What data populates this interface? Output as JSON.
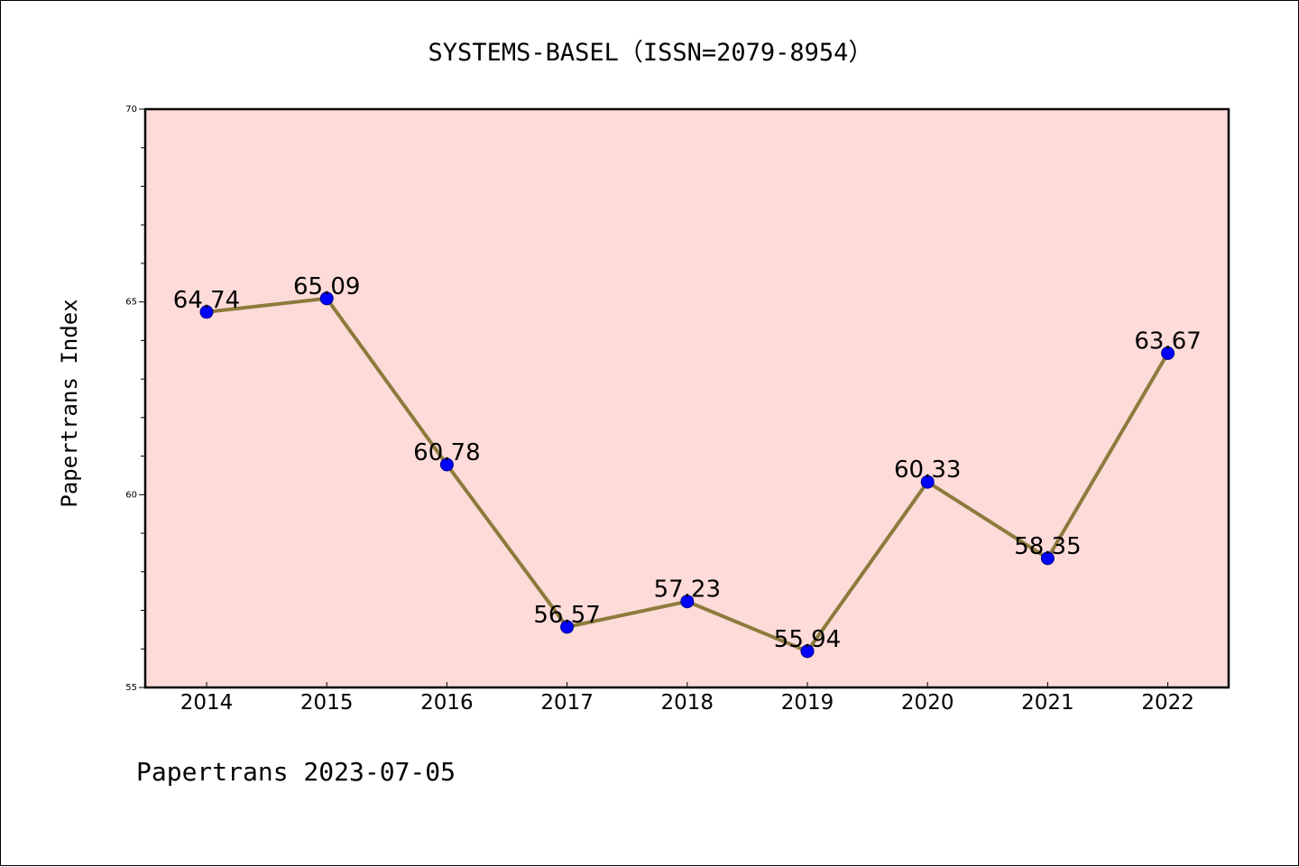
{
  "chart_data": {
    "type": "line",
    "title": "SYSTEMS-BASEL（ISSN=2079-8954）",
    "xlabel": "",
    "ylabel": "Papertrans Index",
    "footer": "Papertrans 2023-07-05",
    "x": [
      "2014",
      "2015",
      "2016",
      "2017",
      "2018",
      "2019",
      "2020",
      "2021",
      "2022"
    ],
    "series": [
      {
        "values": [
          64.74,
          65.09,
          60.78,
          56.57,
          57.23,
          55.94,
          60.33,
          58.35,
          63.67
        ],
        "labels": [
          "64.74",
          "65.09",
          "60.78",
          "56.57",
          "57.23",
          "55.94",
          "60.33",
          "58.35",
          "63.67"
        ],
        "line_color": "#8c7b3c",
        "marker_color": "#0000ff"
      }
    ],
    "ylim": [
      55,
      70
    ],
    "y_major_ticks": [
      "55",
      "60",
      "65",
      "70"
    ],
    "y_minor_step": 1,
    "plot_background": "#fddbd9",
    "grid": false,
    "legend": "none"
  }
}
